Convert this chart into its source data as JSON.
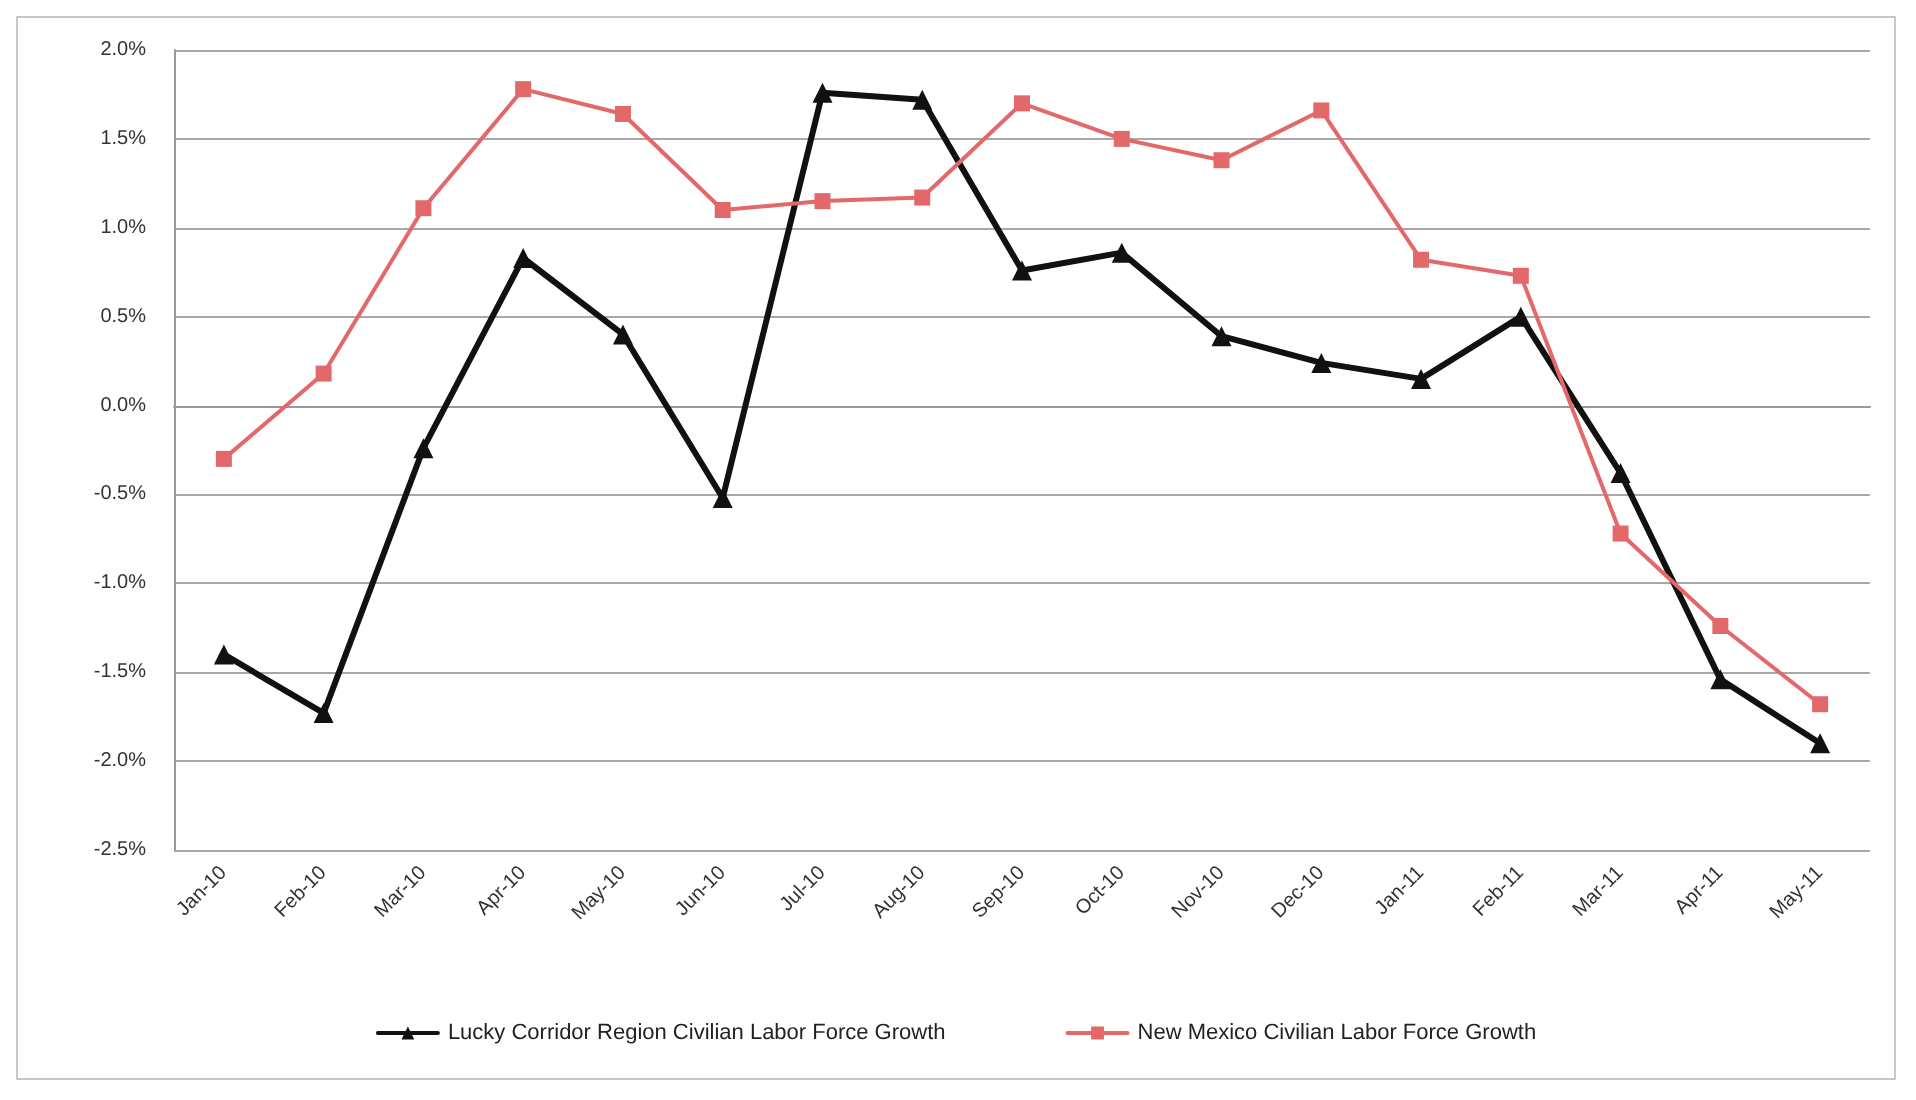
{
  "chart_data": {
    "type": "line",
    "categories": [
      "Jan-10",
      "Feb-10",
      "Mar-10",
      "Apr-10",
      "May-10",
      "Jun-10",
      "Jul-10",
      "Aug-10",
      "Sep-10",
      "Oct-10",
      "Nov-10",
      "Dec-10",
      "Jan-11",
      "Feb-11",
      "Mar-11",
      "Apr-11",
      "May-11"
    ],
    "series": [
      {
        "name": "Lucky Corridor Region Civilian Labor Force Growth",
        "color": "#111111",
        "marker": "triangle",
        "values": [
          -1.4,
          -1.73,
          -0.24,
          0.83,
          0.4,
          -0.52,
          1.76,
          1.72,
          0.76,
          0.86,
          0.39,
          0.24,
          0.15,
          0.5,
          -0.38,
          -1.54,
          -1.9
        ]
      },
      {
        "name": "New Mexico Civilian Labor Force Growth",
        "color": "#e3686a",
        "marker": "square",
        "values": [
          -0.3,
          0.18,
          1.11,
          1.78,
          1.64,
          1.1,
          1.15,
          1.17,
          1.7,
          1.5,
          1.38,
          1.66,
          0.82,
          0.73,
          -0.72,
          -1.24,
          -1.68
        ]
      }
    ],
    "ylim": [
      -2.5,
      2.0
    ],
    "yticks": [
      {
        "value": -2.5,
        "label": "-2.5%"
      },
      {
        "value": -2.0,
        "label": "-2.0%"
      },
      {
        "value": -1.5,
        "label": "-1.5%"
      },
      {
        "value": -1.0,
        "label": "-1.0%"
      },
      {
        "value": -0.5,
        "label": "-0.5%"
      },
      {
        "value": 0,
        "label": "0.0%"
      },
      {
        "value": 0.5,
        "label": "0.5%"
      },
      {
        "value": 1.0,
        "label": "1.0%"
      },
      {
        "value": 1.5,
        "label": "1.5%"
      },
      {
        "value": 2.0,
        "label": "2.0%"
      }
    ],
    "grid": "y",
    "legend": "bottom",
    "line_style": "solid"
  }
}
